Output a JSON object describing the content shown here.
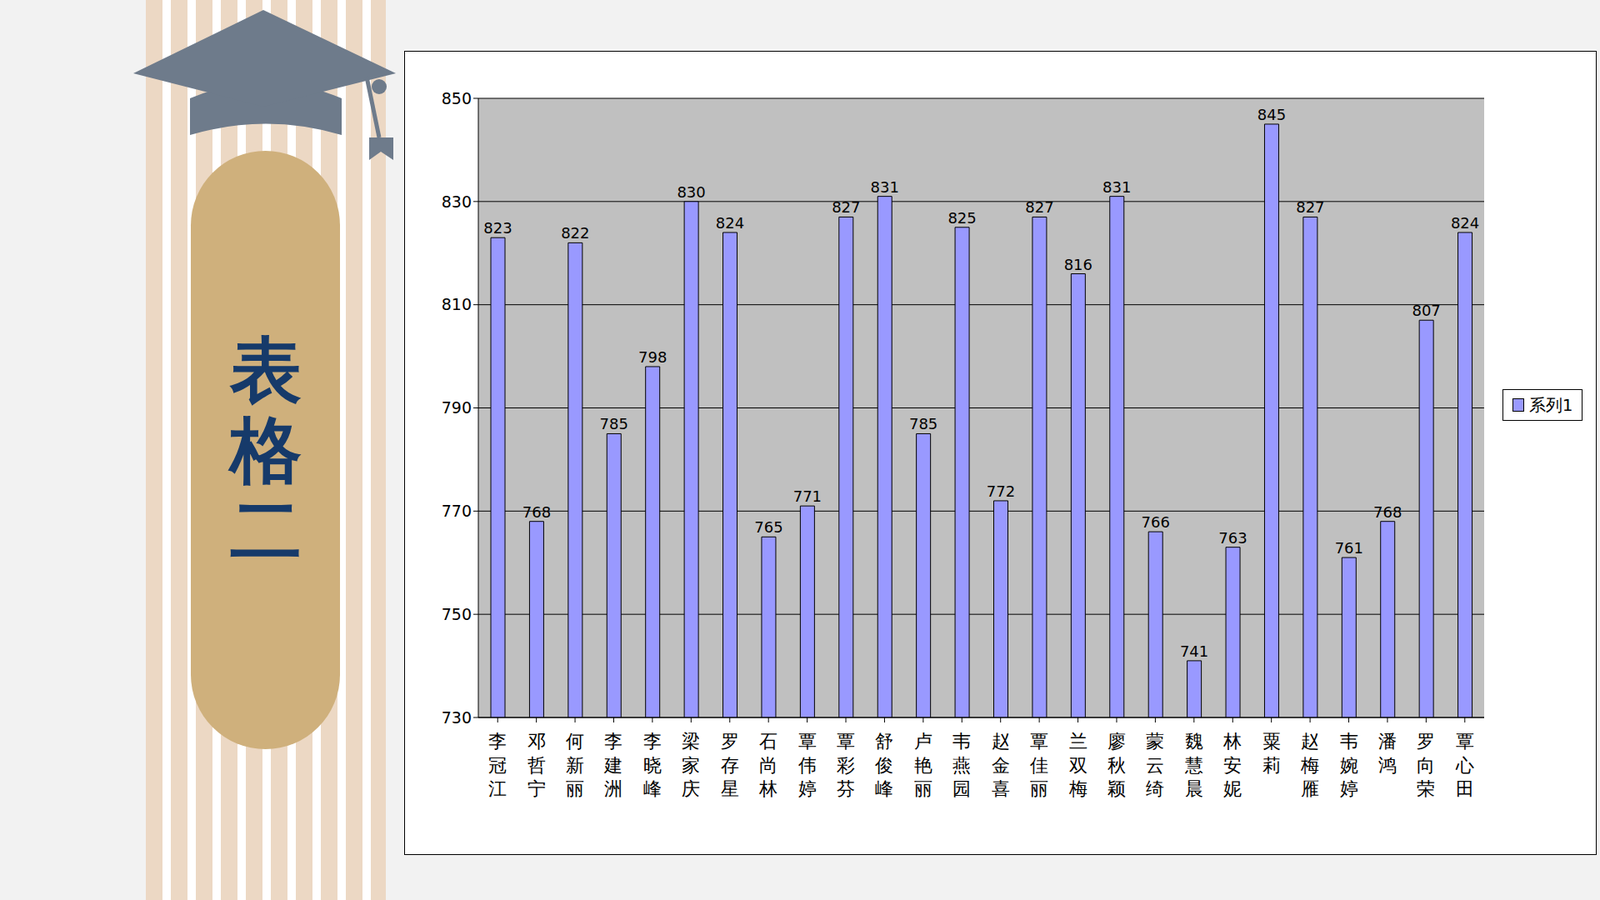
{
  "side_label": "表格二",
  "chart_data": {
    "type": "bar",
    "categories": [
      "李冠江",
      "邓哲宁",
      "何新丽",
      "李建洲",
      "李晓峰",
      "梁家庆",
      "罗存星",
      "石尚林",
      "覃伟婷",
      "覃彩芬",
      "舒俊峰",
      "卢艳丽",
      "韦燕园",
      "赵金喜",
      "覃佳丽",
      "兰双梅",
      "廖秋颖",
      "蒙云绮",
      "魏慧晨",
      "林安妮",
      "粟莉",
      "赵梅雁",
      "韦婉婷",
      "潘鸿",
      "罗向荣",
      "覃心田"
    ],
    "series": [
      {
        "name": "系列1",
        "color": "#9999ff",
        "values": [
          823,
          768,
          822,
          785,
          798,
          830,
          824,
          765,
          771,
          827,
          831,
          785,
          825,
          772,
          827,
          816,
          831,
          766,
          741,
          763,
          845,
          827,
          761,
          768,
          807,
          824
        ]
      }
    ],
    "ylim": [
      730,
      850
    ],
    "yticks": [
      730,
      750,
      770,
      790,
      810,
      830,
      850
    ],
    "grid": true,
    "legend": "right",
    "data_labels": true
  }
}
